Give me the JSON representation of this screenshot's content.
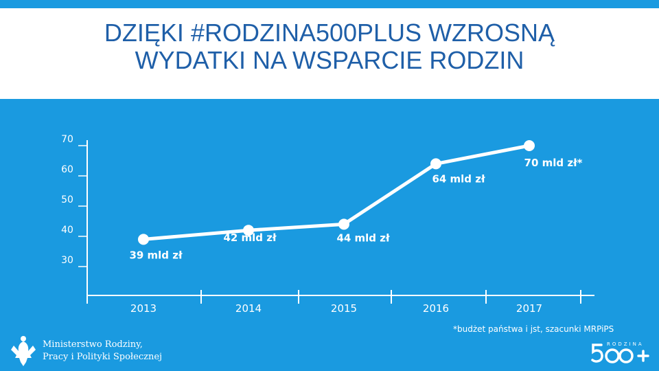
{
  "header": {
    "title_line1": "DZIĘKI #RODZINA500PLUS WZROSNĄ",
    "title_line2": "WYDATKI NA WSPARCIE RODZIN"
  },
  "footnote": "*budżet państwa i jst, szacunki MRPiPS",
  "ministry": {
    "line1": "Ministerstwo Rodziny,",
    "line2": "Pracy i Polityki Społecznej"
  },
  "logo": {
    "word": "RODZINA",
    "mark": "500+"
  },
  "colors": {
    "background": "#1a9ae0",
    "title": "#1f5fa8",
    "line": "#ffffff"
  },
  "chart_data": {
    "type": "line",
    "title": "",
    "xlabel": "",
    "ylabel": "",
    "categories": [
      "2013",
      "2014",
      "2015",
      "2016",
      "2017"
    ],
    "series": [
      {
        "values": [
          39,
          42,
          44,
          64,
          70
        ]
      }
    ],
    "data_labels": [
      "39 mld zł",
      "42 mld zł",
      "44 mld zł",
      "64 mld zł",
      "70 mld zł*"
    ],
    "yticks": [
      "30",
      "40",
      "50",
      "60",
      "70"
    ],
    "ylim": [
      30,
      70
    ],
    "grid": false
  }
}
